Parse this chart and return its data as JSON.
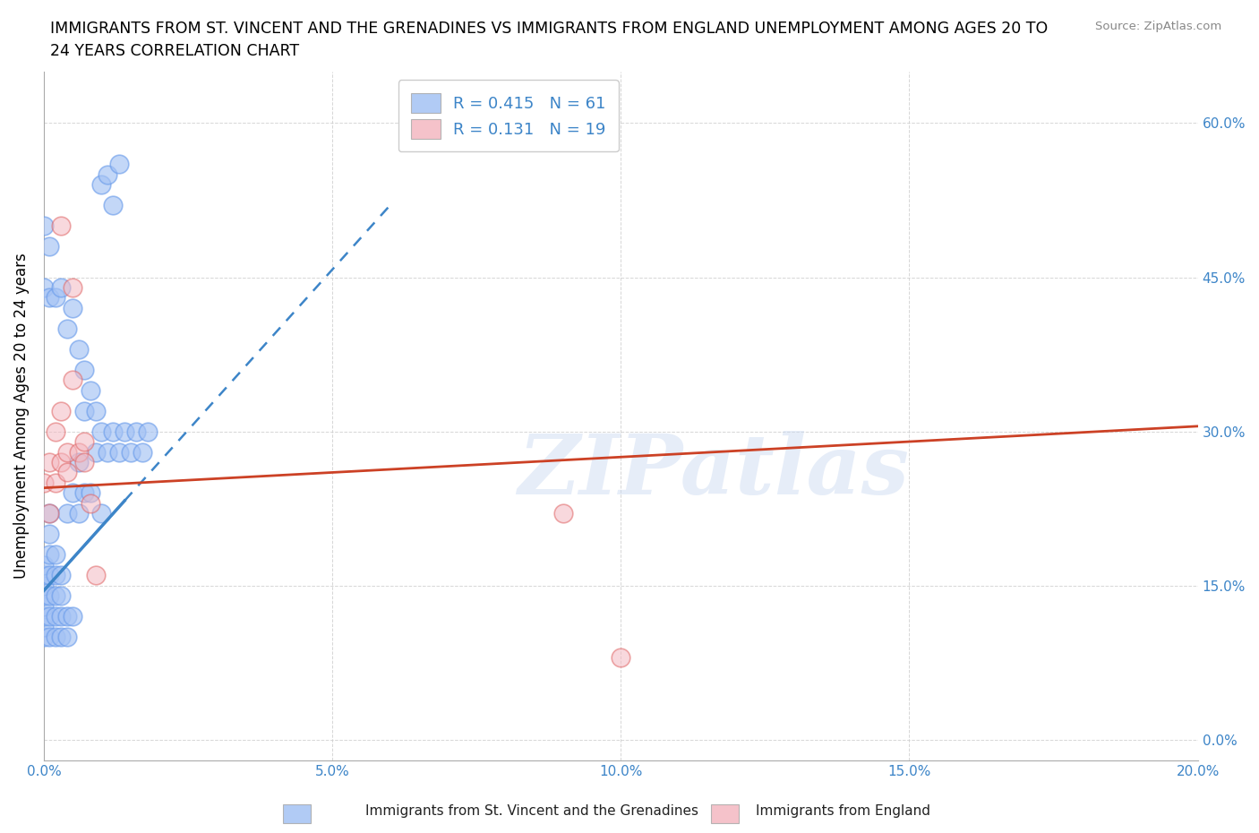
{
  "title_line1": "IMMIGRANTS FROM ST. VINCENT AND THE GRENADINES VS IMMIGRANTS FROM ENGLAND UNEMPLOYMENT AMONG AGES 20 TO",
  "title_line2": "24 YEARS CORRELATION CHART",
  "source": "Source: ZipAtlas.com",
  "ylabel": "Unemployment Among Ages 20 to 24 years",
  "xlim": [
    0.0,
    0.2
  ],
  "ylim": [
    -0.02,
    0.65
  ],
  "xticks": [
    0.0,
    0.05,
    0.1,
    0.15,
    0.2
  ],
  "yticks": [
    0.0,
    0.15,
    0.3,
    0.45,
    0.6
  ],
  "blue_color": "#a4c2f4",
  "pink_color": "#f4b8c1",
  "blue_edge_color": "#6d9eeb",
  "pink_edge_color": "#e06666",
  "blue_line_color": "#3d85c8",
  "pink_line_color": "#cc4125",
  "legend_R1": "0.415",
  "legend_N1": "61",
  "legend_R2": "0.131",
  "legend_N2": "19",
  "watermark": "ZIPatlas",
  "legend_label1": "Immigrants from St. Vincent and the Grenadines",
  "legend_label2": "Immigrants from England",
  "blue_scatter_x": [
    0.0,
    0.0,
    0.0,
    0.0,
    0.0,
    0.0,
    0.0,
    0.0,
    0.001,
    0.001,
    0.001,
    0.001,
    0.001,
    0.001,
    0.001,
    0.002,
    0.002,
    0.002,
    0.002,
    0.002,
    0.003,
    0.003,
    0.003,
    0.003,
    0.004,
    0.004,
    0.004,
    0.005,
    0.005,
    0.006,
    0.006,
    0.007,
    0.007,
    0.008,
    0.009,
    0.01,
    0.01,
    0.011,
    0.012,
    0.013,
    0.014,
    0.015,
    0.016,
    0.017,
    0.018,
    0.0,
    0.0,
    0.001,
    0.001,
    0.002,
    0.003,
    0.004,
    0.005,
    0.006,
    0.007,
    0.008,
    0.009,
    0.01,
    0.011,
    0.012,
    0.013
  ],
  "blue_scatter_y": [
    0.1,
    0.11,
    0.12,
    0.13,
    0.14,
    0.15,
    0.16,
    0.17,
    0.1,
    0.12,
    0.14,
    0.16,
    0.18,
    0.2,
    0.22,
    0.1,
    0.12,
    0.14,
    0.16,
    0.18,
    0.1,
    0.12,
    0.14,
    0.16,
    0.1,
    0.12,
    0.22,
    0.12,
    0.24,
    0.22,
    0.27,
    0.24,
    0.32,
    0.24,
    0.28,
    0.22,
    0.3,
    0.28,
    0.3,
    0.28,
    0.3,
    0.28,
    0.3,
    0.28,
    0.3,
    0.44,
    0.5,
    0.43,
    0.48,
    0.43,
    0.44,
    0.4,
    0.42,
    0.38,
    0.36,
    0.34,
    0.32,
    0.54,
    0.55,
    0.52,
    0.56
  ],
  "pink_scatter_x": [
    0.0,
    0.001,
    0.001,
    0.002,
    0.002,
    0.003,
    0.003,
    0.004,
    0.004,
    0.005,
    0.006,
    0.007,
    0.008,
    0.09,
    0.003,
    0.005,
    0.007,
    0.009,
    0.1
  ],
  "pink_scatter_y": [
    0.25,
    0.22,
    0.27,
    0.25,
    0.3,
    0.27,
    0.32,
    0.26,
    0.28,
    0.44,
    0.28,
    0.27,
    0.23,
    0.22,
    0.5,
    0.35,
    0.29,
    0.16,
    0.08
  ],
  "blue_trend_x": [
    0.0,
    0.06
  ],
  "blue_trend_y": [
    0.145,
    0.52
  ],
  "pink_trend_x": [
    0.0,
    0.2
  ],
  "pink_trend_y": [
    0.245,
    0.305
  ]
}
